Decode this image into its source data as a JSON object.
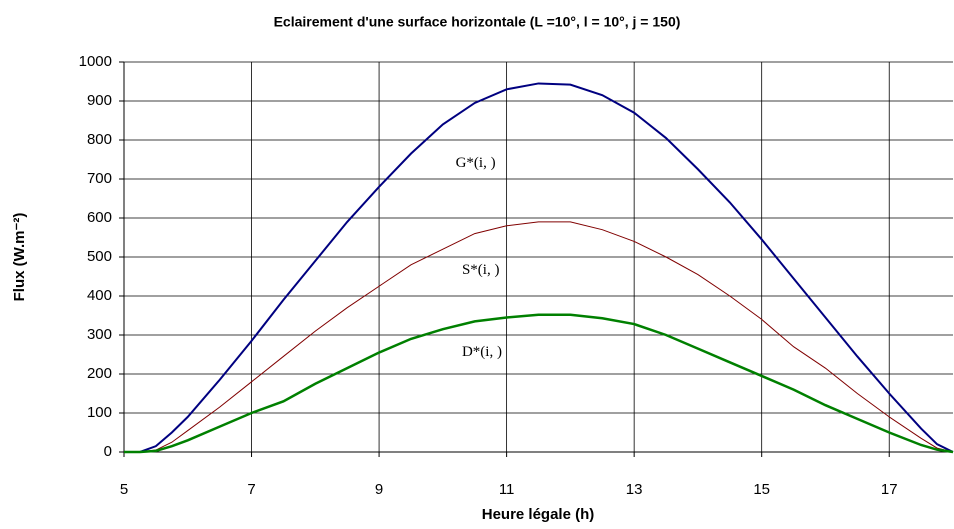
{
  "chart_data": {
    "type": "line",
    "title": "Eclairement d'une surface horizontale (L =10°, l = 10°, j = 150)",
    "x_label": "Heure légale (h)",
    "y_label": "Flux (W.m⁻²)",
    "x": [
      5,
      5.25,
      5.5,
      5.75,
      6,
      6.5,
      7,
      7.5,
      8,
      8.5,
      9,
      9.5,
      10,
      10.5,
      11,
      11.5,
      12,
      12.5,
      13,
      13.5,
      14,
      14.5,
      15,
      15.5,
      16,
      16.5,
      17,
      17.5,
      17.75,
      18
    ],
    "series": [
      {
        "name": "G*(i, )",
        "color": "#000080",
        "values": [
          0,
          0,
          15,
          50,
          90,
          185,
          285,
          390,
          490,
          590,
          680,
          765,
          840,
          895,
          930,
          945,
          942,
          915,
          870,
          805,
          725,
          640,
          545,
          445,
          345,
          245,
          150,
          60,
          20,
          0
        ]
      },
      {
        "name": "S*(i, )",
        "color": "#800000",
        "values": [
          0,
          0,
          5,
          25,
          55,
          115,
          180,
          245,
          310,
          370,
          425,
          480,
          520,
          560,
          580,
          590,
          590,
          570,
          540,
          500,
          455,
          400,
          340,
          270,
          215,
          150,
          90,
          35,
          10,
          0
        ]
      },
      {
        "name": "D*(i, )",
        "color": "#008000",
        "values": [
          0,
          0,
          3,
          15,
          30,
          65,
          100,
          130,
          175,
          215,
          255,
          290,
          315,
          335,
          345,
          352,
          352,
          343,
          328,
          300,
          265,
          230,
          195,
          160,
          120,
          85,
          50,
          18,
          6,
          0
        ]
      }
    ],
    "xlim": [
      5,
      18
    ],
    "xticks": [
      5,
      7,
      9,
      11,
      13,
      15,
      17
    ],
    "ylim": [
      0,
      1000
    ],
    "yticks": [
      0,
      100,
      200,
      300,
      400,
      500,
      600,
      700,
      800,
      900,
      1000
    ],
    "grid": true
  }
}
